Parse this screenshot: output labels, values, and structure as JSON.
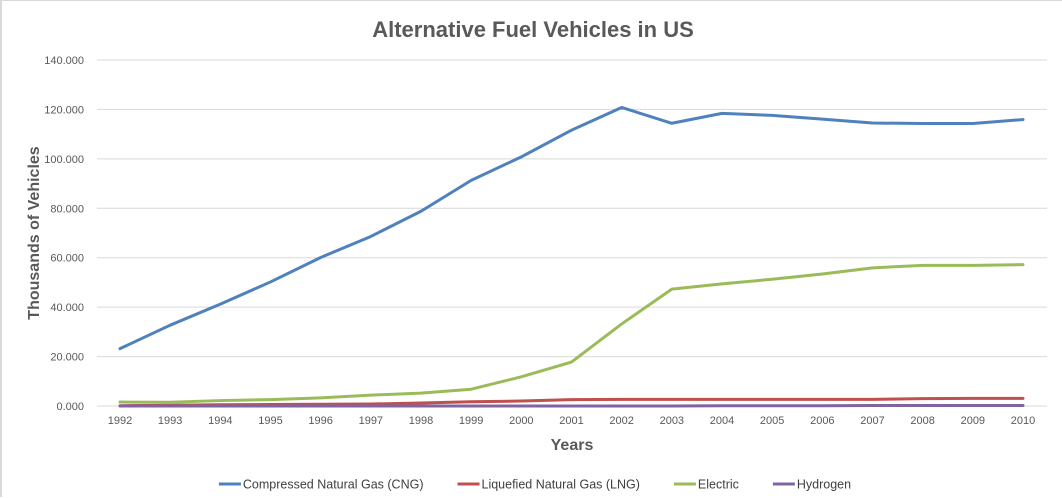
{
  "chart_data": {
    "type": "line",
    "title": "Alternative Fuel Vehicles in US",
    "xlabel": "Years",
    "ylabel": "Thousands of Vehicles",
    "ylim": [
      0,
      140
    ],
    "yticks": [
      0,
      20,
      40,
      60,
      80,
      100,
      120,
      140
    ],
    "ytick_labels": [
      "0.000",
      "20.000",
      "40.000",
      "60.000",
      "80.000",
      "100.000",
      "120.000",
      "140.000"
    ],
    "grid": true,
    "legend_position": "bottom",
    "x": [
      "1992",
      "1993",
      "1994",
      "1995",
      "1996",
      "1997",
      "1998",
      "1999",
      "2000",
      "2001",
      "2002",
      "2003",
      "2004",
      "2005",
      "2006",
      "2007",
      "2008",
      "2009",
      "2010"
    ],
    "series": [
      {
        "name": "Compressed Natural Gas (CNG)",
        "color": "#4f81bd",
        "values": [
          23.2,
          32.7,
          41.2,
          50.2,
          60.1,
          68.6,
          78.8,
          91.3,
          100.8,
          111.6,
          120.8,
          114.4,
          118.4,
          117.6,
          116.1,
          114.5,
          114.3,
          114.3,
          115.9
        ]
      },
      {
        "name": "Liquefied Natural Gas (LNG)",
        "color": "#c0504d",
        "values": [
          0.1,
          0.3,
          0.5,
          0.6,
          0.7,
          0.8,
          1.2,
          1.7,
          2.0,
          2.6,
          2.7,
          2.7,
          2.7,
          2.7,
          2.7,
          2.7,
          3.0,
          3.1,
          3.1
        ]
      },
      {
        "name": "Electric",
        "color": "#9bbb59",
        "values": [
          1.6,
          1.5,
          2.2,
          2.6,
          3.3,
          4.4,
          5.2,
          6.8,
          11.8,
          17.8,
          33.2,
          47.3,
          49.4,
          51.3,
          53.4,
          55.9,
          56.9,
          56.9,
          57.2
        ]
      },
      {
        "name": "Hydrogen",
        "color": "#8064a2",
        "values": [
          0.0,
          0.0,
          0.0,
          0.0,
          0.0,
          0.0,
          0.0,
          0.0,
          0.0,
          0.0,
          0.0,
          0.0,
          0.1,
          0.1,
          0.1,
          0.2,
          0.2,
          0.2,
          0.2
        ]
      }
    ]
  }
}
